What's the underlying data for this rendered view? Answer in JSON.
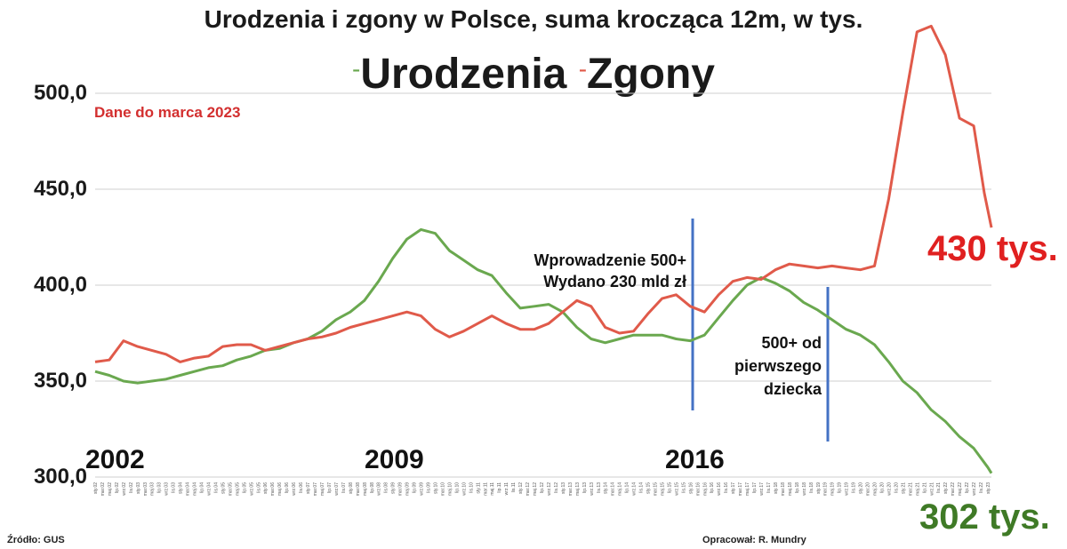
{
  "chart_data": {
    "type": "line",
    "title": "Urodzenia i zgony w Polsce, suma krocząca 12m, w tys.",
    "note": "Dane do marca 2023",
    "ylim": [
      300,
      540
    ],
    "y_ticks": [
      "300,0",
      "350,0",
      "400,0",
      "450,0",
      "500,0"
    ],
    "y_tick_values": [
      300,
      350,
      400,
      450,
      500
    ],
    "grid": true,
    "legend_position": "top-center",
    "legend_dash": "-",
    "x_start": "2002-02",
    "x_end": "2023-03",
    "year_labels": [
      {
        "label": "2002",
        "date": "2002-02"
      },
      {
        "label": "2009",
        "date": "2009-01"
      },
      {
        "label": "2016",
        "date": "2016-01"
      }
    ],
    "series": [
      {
        "name": "Urodzenia",
        "color": "#6aa84f",
        "points": [
          [
            "2002-02",
            355
          ],
          [
            "2002-06",
            353
          ],
          [
            "2002-10",
            350
          ],
          [
            "2003-02",
            349
          ],
          [
            "2003-06",
            350
          ],
          [
            "2003-10",
            351
          ],
          [
            "2004-02",
            353
          ],
          [
            "2004-06",
            355
          ],
          [
            "2004-10",
            357
          ],
          [
            "2005-02",
            358
          ],
          [
            "2005-06",
            361
          ],
          [
            "2005-10",
            363
          ],
          [
            "2006-02",
            366
          ],
          [
            "2006-06",
            367
          ],
          [
            "2006-10",
            370
          ],
          [
            "2007-02",
            372
          ],
          [
            "2007-06",
            376
          ],
          [
            "2007-10",
            382
          ],
          [
            "2008-02",
            386
          ],
          [
            "2008-06",
            392
          ],
          [
            "2008-10",
            402
          ],
          [
            "2009-02",
            414
          ],
          [
            "2009-06",
            424
          ],
          [
            "2009-10",
            429
          ],
          [
            "2010-02",
            427
          ],
          [
            "2010-06",
            418
          ],
          [
            "2010-10",
            413
          ],
          [
            "2011-02",
            408
          ],
          [
            "2011-06",
            405
          ],
          [
            "2011-10",
            396
          ],
          [
            "2012-02",
            388
          ],
          [
            "2012-06",
            389
          ],
          [
            "2012-10",
            390
          ],
          [
            "2013-02",
            386
          ],
          [
            "2013-06",
            378
          ],
          [
            "2013-10",
            372
          ],
          [
            "2014-02",
            370
          ],
          [
            "2014-06",
            372
          ],
          [
            "2014-10",
            374
          ],
          [
            "2015-02",
            374
          ],
          [
            "2015-06",
            374
          ],
          [
            "2015-10",
            372
          ],
          [
            "2016-02",
            371
          ],
          [
            "2016-06",
            374
          ],
          [
            "2016-10",
            383
          ],
          [
            "2017-02",
            392
          ],
          [
            "2017-06",
            400
          ],
          [
            "2017-10",
            404
          ],
          [
            "2018-02",
            401
          ],
          [
            "2018-06",
            397
          ],
          [
            "2018-10",
            391
          ],
          [
            "2019-02",
            387
          ],
          [
            "2019-06",
            382
          ],
          [
            "2019-10",
            377
          ],
          [
            "2020-02",
            374
          ],
          [
            "2020-06",
            369
          ],
          [
            "2020-10",
            360
          ],
          [
            "2021-02",
            350
          ],
          [
            "2021-06",
            344
          ],
          [
            "2021-10",
            335
          ],
          [
            "2022-02",
            329
          ],
          [
            "2022-06",
            321
          ],
          [
            "2022-10",
            315
          ],
          [
            "2023-02",
            305
          ],
          [
            "2023-03",
            302
          ]
        ]
      },
      {
        "name": "Zgony",
        "color": "#e05a4a",
        "points": [
          [
            "2002-02",
            360
          ],
          [
            "2002-06",
            361
          ],
          [
            "2002-10",
            371
          ],
          [
            "2003-02",
            368
          ],
          [
            "2003-06",
            366
          ],
          [
            "2003-10",
            364
          ],
          [
            "2004-02",
            360
          ],
          [
            "2004-06",
            362
          ],
          [
            "2004-10",
            363
          ],
          [
            "2005-02",
            368
          ],
          [
            "2005-06",
            369
          ],
          [
            "2005-10",
            369
          ],
          [
            "2006-02",
            366
          ],
          [
            "2006-06",
            368
          ],
          [
            "2006-10",
            370
          ],
          [
            "2007-02",
            372
          ],
          [
            "2007-06",
            373
          ],
          [
            "2007-10",
            375
          ],
          [
            "2008-02",
            378
          ],
          [
            "2008-06",
            380
          ],
          [
            "2008-10",
            382
          ],
          [
            "2009-02",
            384
          ],
          [
            "2009-06",
            386
          ],
          [
            "2009-10",
            384
          ],
          [
            "2010-02",
            377
          ],
          [
            "2010-06",
            373
          ],
          [
            "2010-10",
            376
          ],
          [
            "2011-02",
            380
          ],
          [
            "2011-06",
            384
          ],
          [
            "2011-10",
            380
          ],
          [
            "2012-02",
            377
          ],
          [
            "2012-06",
            377
          ],
          [
            "2012-10",
            380
          ],
          [
            "2013-02",
            386
          ],
          [
            "2013-06",
            392
          ],
          [
            "2013-10",
            389
          ],
          [
            "2014-02",
            378
          ],
          [
            "2014-06",
            375
          ],
          [
            "2014-10",
            376
          ],
          [
            "2015-02",
            385
          ],
          [
            "2015-06",
            393
          ],
          [
            "2015-10",
            395
          ],
          [
            "2016-02",
            389
          ],
          [
            "2016-06",
            386
          ],
          [
            "2016-10",
            395
          ],
          [
            "2017-02",
            402
          ],
          [
            "2017-06",
            404
          ],
          [
            "2017-10",
            403
          ],
          [
            "2018-02",
            408
          ],
          [
            "2018-06",
            411
          ],
          [
            "2018-10",
            410
          ],
          [
            "2019-02",
            409
          ],
          [
            "2019-06",
            410
          ],
          [
            "2019-10",
            409
          ],
          [
            "2020-02",
            408
          ],
          [
            "2020-06",
            410
          ],
          [
            "2020-10",
            445
          ],
          [
            "2021-02",
            490
          ],
          [
            "2021-06",
            532
          ],
          [
            "2021-10",
            535
          ],
          [
            "2022-02",
            520
          ],
          [
            "2022-06",
            487
          ],
          [
            "2022-10",
            483
          ],
          [
            "2023-01",
            448
          ],
          [
            "2023-03",
            430
          ]
        ]
      }
    ],
    "annotations": [
      {
        "lines": [
          "Wprowadzenie 500+",
          "Wydano 230 mld zł"
        ],
        "date": "2016-04"
      },
      {
        "lines": [
          "500+ od",
          "pierwszego",
          "dziecka"
        ],
        "date": "2019-07"
      }
    ],
    "end_labels": {
      "zgony": "430 tys.",
      "urodzenia": "302 tys."
    },
    "x_tick_month_abbr": [
      "sty",
      "mar",
      "maj",
      "lip",
      "wrz",
      "lis"
    ]
  },
  "footer": {
    "source": "Źródło: GUS",
    "author": "Opracował: R. Mundry"
  }
}
